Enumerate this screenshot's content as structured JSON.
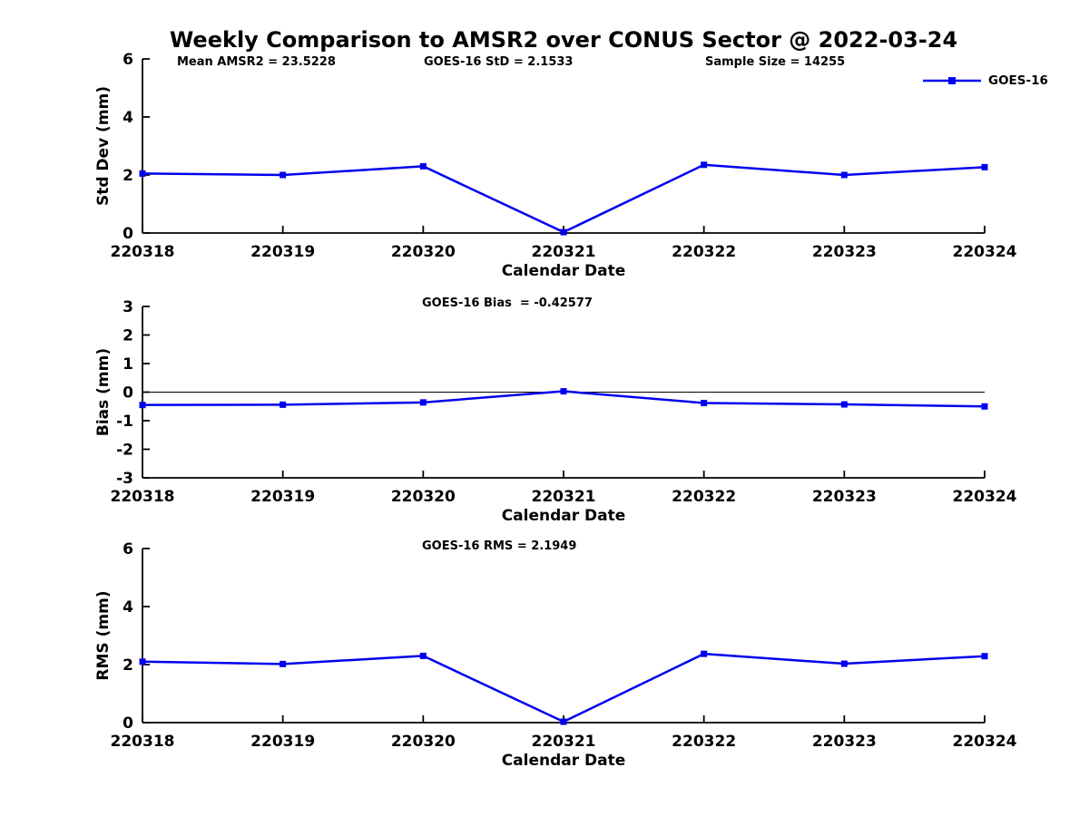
{
  "figure_title": "Weekly Comparison to AMSR2 over CONUS Sector @ 2022-03-24",
  "xlabel": "Calendar Date",
  "x_categories": [
    "220318",
    "220319",
    "220320",
    "220321",
    "220322",
    "220323",
    "220324"
  ],
  "legend": {
    "label": "GOES-16"
  },
  "colors": {
    "series": "#0000EE",
    "axis": "#000000",
    "text": "#000000",
    "zero_line": "#000000"
  },
  "chart_data": [
    {
      "type": "line",
      "id": "std-dev",
      "annotations": [
        "Mean AMSR2 = 23.5228",
        "GOES-16 StD = 2.1533",
        "Sample Size = 14255"
      ],
      "ylabel": "Std Dev (mm)",
      "xlabel": "Calendar Date",
      "ylim": [
        0,
        6
      ],
      "yticks": [
        0,
        2,
        4,
        6
      ],
      "grid": false,
      "legend_position": "top-right-outside",
      "categories": [
        "220318",
        "220319",
        "220320",
        "220321",
        "220322",
        "220323",
        "220324"
      ],
      "series": [
        {
          "name": "GOES-16",
          "values": [
            2.05,
            2.0,
            2.3,
            0.03,
            2.35,
            2.0,
            2.27
          ]
        }
      ]
    },
    {
      "type": "line",
      "id": "bias",
      "annotations": [
        "GOES-16 Bias  = -0.42577"
      ],
      "ylabel": "Bias (mm)",
      "xlabel": "Calendar Date",
      "ylim": [
        -3,
        3
      ],
      "yticks": [
        3,
        2,
        1,
        0,
        -1,
        -2,
        -3
      ],
      "zero_line": true,
      "grid": false,
      "categories": [
        "220318",
        "220319",
        "220320",
        "220321",
        "220322",
        "220323",
        "220324"
      ],
      "series": [
        {
          "name": "GOES-16",
          "values": [
            -0.45,
            -0.44,
            -0.36,
            0.03,
            -0.38,
            -0.43,
            -0.5
          ]
        }
      ]
    },
    {
      "type": "line",
      "id": "rms",
      "annotations": [
        "GOES-16 RMS = 2.1949"
      ],
      "ylabel": "RMS (mm)",
      "xlabel": "Calendar Date",
      "ylim": [
        0,
        6
      ],
      "yticks": [
        0,
        2,
        4,
        6
      ],
      "grid": false,
      "categories": [
        "220318",
        "220319",
        "220320",
        "220321",
        "220322",
        "220323",
        "220324"
      ],
      "series": [
        {
          "name": "GOES-16",
          "values": [
            2.1,
            2.02,
            2.3,
            0.03,
            2.37,
            2.03,
            2.29
          ]
        }
      ]
    }
  ]
}
